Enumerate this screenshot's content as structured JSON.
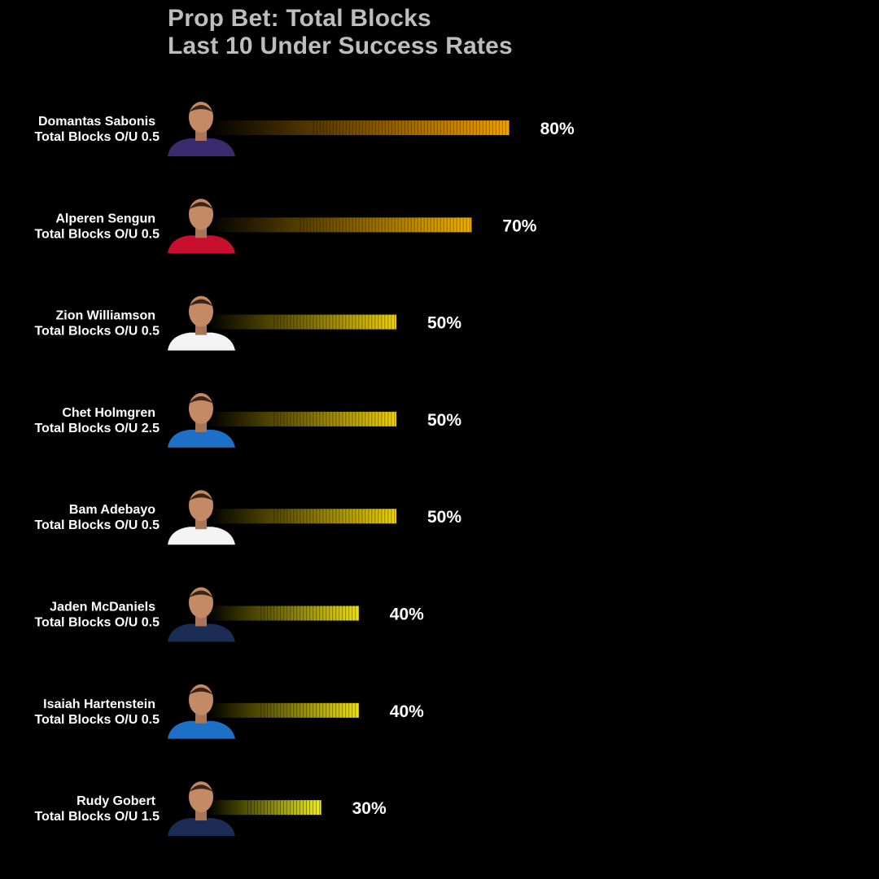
{
  "title": "Prop Bet: Total Blocks",
  "subtitle": "Last 10 Under Success Rates",
  "colors": {
    "background": "#000000",
    "title": "#bdbdbd",
    "label": "#ffffff",
    "value": "#ffffff",
    "bar_start": "#000000",
    "bar_high": "#f0a000",
    "bar_low": "#f2f200"
  },
  "chart_data": {
    "type": "bar",
    "orientation": "horizontal",
    "title": "Prop Bet: Total Blocks",
    "subtitle": "Last 10 Under Success Rates",
    "unit": "%",
    "xlim": [
      0,
      100
    ],
    "grid": false,
    "legend": "none",
    "categories": [
      {
        "player": "Domantas Sabonis",
        "market": "Total Blocks O/U 0.5",
        "jersey_color": "#3a2a6e"
      },
      {
        "player": "Alperen Sengun",
        "market": "Total Blocks O/U 0.5",
        "jersey_color": "#c8102e"
      },
      {
        "player": "Zion Williamson",
        "market": "Total Blocks O/U 0.5",
        "jersey_color": "#f4f4f4"
      },
      {
        "player": "Chet Holmgren",
        "market": "Total Blocks O/U 2.5",
        "jersey_color": "#1e6fc8"
      },
      {
        "player": "Bam Adebayo",
        "market": "Total Blocks O/U 0.5",
        "jersey_color": "#f4f4f4"
      },
      {
        "player": "Jaden McDaniels",
        "market": "Total Blocks O/U 0.5",
        "jersey_color": "#1b2c55"
      },
      {
        "player": "Isaiah Hartenstein",
        "market": "Total Blocks O/U 0.5",
        "jersey_color": "#1e6fc8"
      },
      {
        "player": "Rudy Gobert",
        "market": "Total Blocks O/U 1.5",
        "jersey_color": "#1b2c55"
      }
    ],
    "values": [
      80,
      70,
      50,
      50,
      50,
      40,
      40,
      30
    ],
    "value_labels": [
      "80%",
      "70%",
      "50%",
      "50%",
      "50%",
      "40%",
      "40%",
      "30%"
    ]
  }
}
